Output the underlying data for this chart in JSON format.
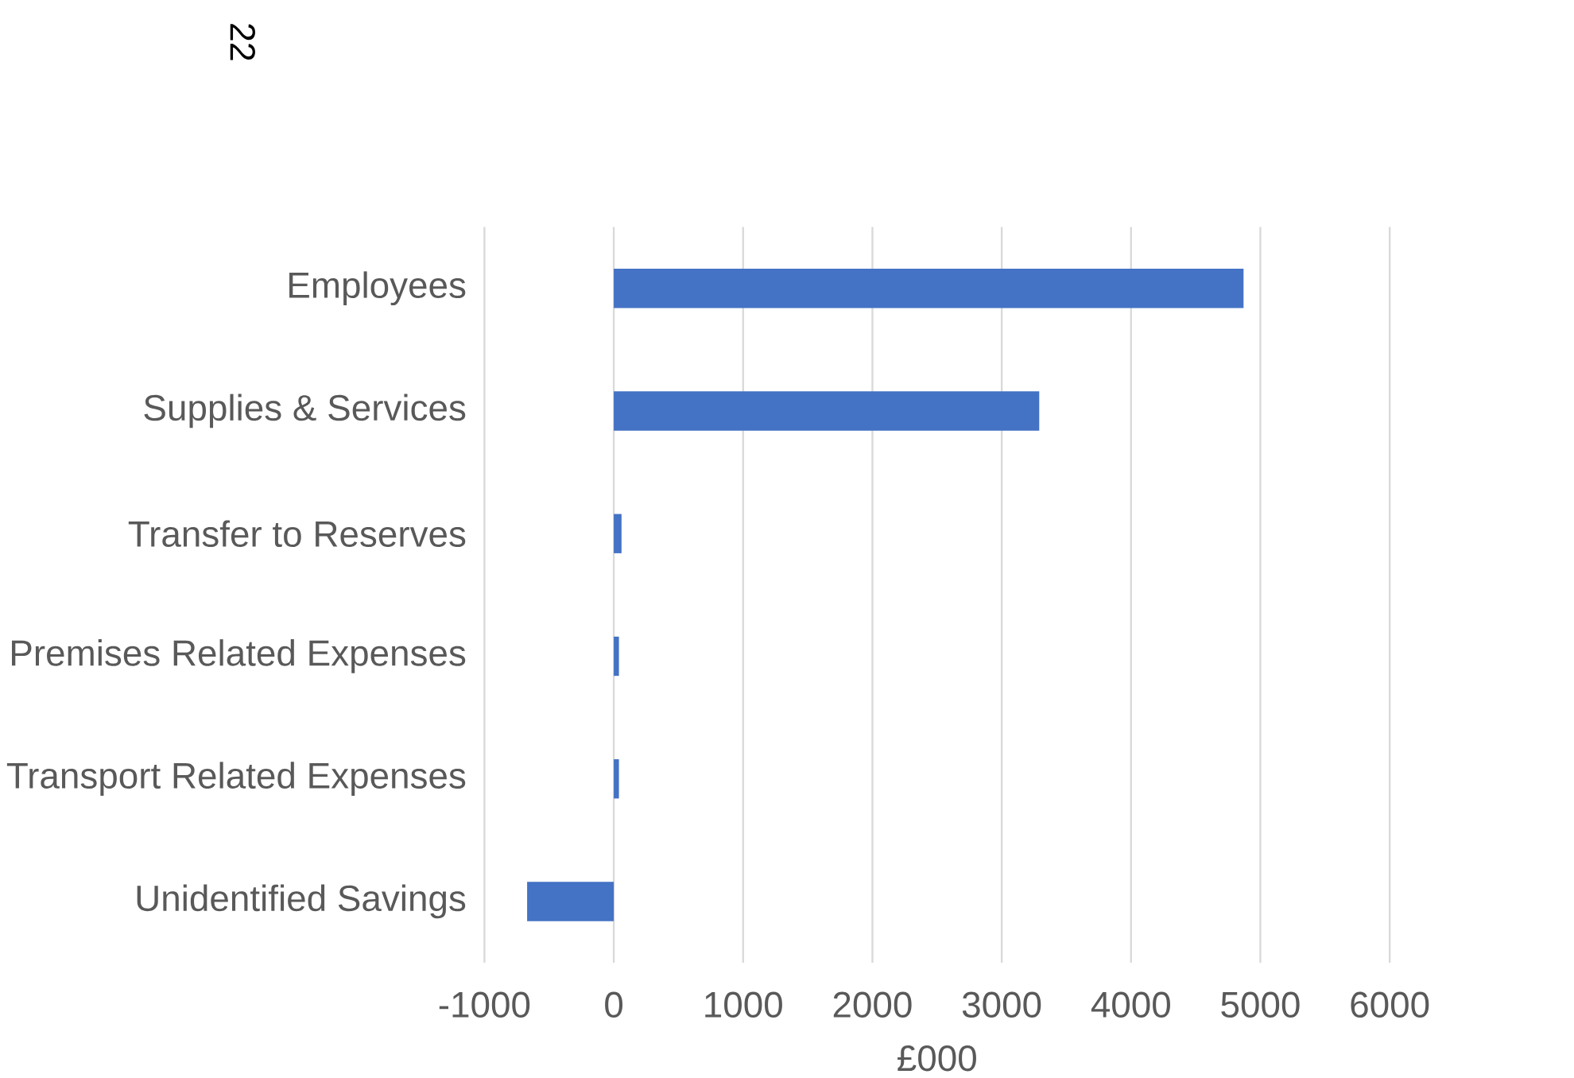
{
  "chart_data": {
    "type": "bar",
    "orientation": "horizontal",
    "categories": [
      "Employees",
      "Supplies & Services",
      "Transfer to Reserves",
      "Premises Related Expenses",
      "Transport Related Expenses",
      "Unidentified Savings"
    ],
    "values": [
      4870,
      3290,
      60,
      40,
      40,
      -670
    ],
    "color": "#4472c4",
    "xlabel": "£000",
    "xlim": [
      -1000,
      6000
    ],
    "xticks": [
      -1000,
      0,
      1000,
      2000,
      3000,
      4000,
      5000,
      6000
    ],
    "grid": "x",
    "annotations": [
      "22"
    ]
  }
}
